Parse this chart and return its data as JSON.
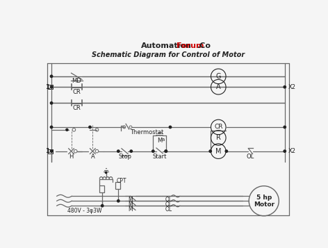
{
  "title": "Schematic Diagram for Control of Motor",
  "subtitle_automation": "Automation",
  "subtitle_forum": "Forum",
  "subtitle_co": ".Co",
  "bg_color": "#f5f5f5",
  "line_color": "#666666",
  "dark_color": "#222222",
  "red_color": "#cc0000",
  "voltage_label": "480V - 3φ3W",
  "motor_label": "5 hp\nMotor",
  "cpt_label": "CPT",
  "stop_label": "Stop",
  "start_label": "Start",
  "ma_label": "M",
  "ma_sub": "a",
  "thermostat_label": "Thermostat",
  "ol_right_label": "OL",
  "h_label": "H",
  "a_label": "A",
  "m_label": "M",
  "r_label": "R",
  "cr_label": "CR",
  "md_label": "MD",
  "a_circle_label": "A",
  "g_circle_label": "G"
}
